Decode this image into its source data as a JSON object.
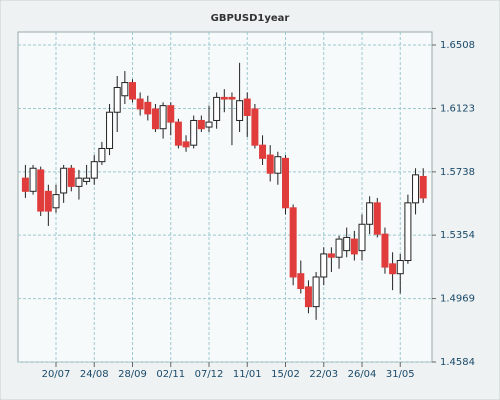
{
  "chart_data": {
    "type": "candlestick",
    "title": "GBPUSD1year",
    "categories": [
      null,
      null,
      null,
      null,
      "20/07",
      null,
      null,
      null,
      null,
      "24/08",
      null,
      null,
      null,
      null,
      "28/09",
      null,
      null,
      null,
      null,
      "02/11",
      null,
      null,
      null,
      null,
      "07/12",
      null,
      null,
      null,
      null,
      "11/01",
      null,
      null,
      null,
      null,
      "15/02",
      null,
      null,
      null,
      null,
      "22/03",
      null,
      null,
      null,
      null,
      "26/04",
      null,
      null,
      null,
      null,
      "31/05",
      null,
      null,
      null
    ],
    "open": [
      1.57,
      1.562,
      1.575,
      1.562,
      1.552,
      1.561,
      1.576,
      1.565,
      1.568,
      1.57,
      1.58,
      1.588,
      1.61,
      1.62,
      1.628,
      1.618,
      1.616,
      1.612,
      1.6,
      1.614,
      1.604,
      1.592,
      1.59,
      1.605,
      1.601,
      1.605,
      1.619,
      1.619,
      1.605,
      1.618,
      1.612,
      1.59,
      1.584,
      1.573,
      1.582,
      1.552,
      1.512,
      1.504,
      1.492,
      1.51,
      1.524,
      1.522,
      1.526,
      1.533,
      1.526,
      1.542,
      1.555,
      1.536,
      1.518,
      1.512,
      1.52,
      1.555,
      1.571
    ],
    "high": [
      1.578,
      1.578,
      1.577,
      1.566,
      1.566,
      1.578,
      1.578,
      1.575,
      1.578,
      1.584,
      1.592,
      1.615,
      1.632,
      1.635,
      1.63,
      1.622,
      1.62,
      1.615,
      1.616,
      1.616,
      1.606,
      1.596,
      1.608,
      1.608,
      1.614,
      1.622,
      1.624,
      1.622,
      1.64,
      1.622,
      1.615,
      1.596,
      1.59,
      1.586,
      1.584,
      1.554,
      1.52,
      1.508,
      1.513,
      1.528,
      1.528,
      1.535,
      1.54,
      1.538,
      1.548,
      1.559,
      1.558,
      1.54,
      1.525,
      1.524,
      1.56,
      1.576,
      1.576
    ],
    "low": [
      1.558,
      1.56,
      1.547,
      1.541,
      1.549,
      1.555,
      1.562,
      1.557,
      1.566,
      1.566,
      1.578,
      1.584,
      1.598,
      1.615,
      1.616,
      1.608,
      1.605,
      1.598,
      1.594,
      1.596,
      1.588,
      1.586,
      1.588,
      1.598,
      1.598,
      1.6,
      1.61,
      1.59,
      1.598,
      1.595,
      1.588,
      1.578,
      1.568,
      1.566,
      1.548,
      1.505,
      1.5,
      1.488,
      1.484,
      1.505,
      1.513,
      1.515,
      1.522,
      1.52,
      1.52,
      1.536,
      1.534,
      1.512,
      1.502,
      1.5,
      1.518,
      1.548,
      1.555
    ],
    "close": [
      1.562,
      1.576,
      1.55,
      1.55,
      1.56,
      1.576,
      1.565,
      1.57,
      1.57,
      1.58,
      1.588,
      1.61,
      1.625,
      1.628,
      1.618,
      1.612,
      1.609,
      1.6,
      1.614,
      1.604,
      1.59,
      1.589,
      1.605,
      1.6,
      1.604,
      1.619,
      1.618,
      1.618,
      1.617,
      1.608,
      1.59,
      1.582,
      1.573,
      1.583,
      1.552,
      1.51,
      1.503,
      1.492,
      1.51,
      1.524,
      1.522,
      1.533,
      1.534,
      1.524,
      1.542,
      1.555,
      1.536,
      1.516,
      1.512,
      1.52,
      1.555,
      1.572,
      1.558
    ],
    "up_color": "#ffffff",
    "down_color": "#e03c3c",
    "ylim": [
      1.4584,
      1.6587
    ],
    "yticks": [
      1.4584,
      1.4969,
      1.5354,
      1.5738,
      1.6123,
      1.6508
    ],
    "grid": true
  }
}
